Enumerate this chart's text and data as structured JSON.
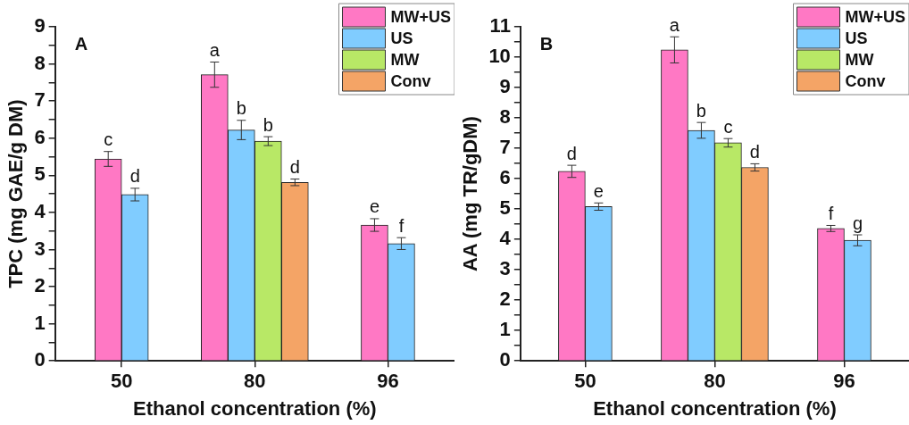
{
  "chart_data": [
    {
      "type": "bar",
      "title": "A",
      "xlabel": "Ethanol concentration (%)",
      "ylabel": "TPC (mg GAE/g DM)",
      "categories": [
        "50",
        "80",
        "96"
      ],
      "series": [
        {
          "name": "MW+US",
          "color": "#ff78c4",
          "values": [
            5.44,
            7.71,
            3.66
          ],
          "errors": [
            0.2,
            0.34,
            0.17
          ]
        },
        {
          "name": "US",
          "color": "#80ccff",
          "values": [
            4.48,
            6.22,
            3.16
          ],
          "errors": [
            0.17,
            0.26,
            0.16
          ]
        },
        {
          "name": "MW",
          "color": "#b8e866",
          "values": [
            null,
            5.92,
            null
          ],
          "errors": [
            null,
            0.12,
            null
          ]
        },
        {
          "name": "Conv",
          "color": "#f4a466",
          "values": [
            null,
            4.81,
            null
          ],
          "errors": [
            null,
            0.09,
            null
          ]
        }
      ],
      "ylim": [
        0,
        9
      ],
      "yticks": [
        0,
        {
          "value": 0.5,
          "label": null
        },
        1,
        {
          "value": 1.5,
          "label": null
        },
        2,
        {
          "value": 2.5,
          "label": null
        },
        3,
        {
          "value": 3.5,
          "label": null
        },
        4,
        {
          "value": 4.5,
          "label": null
        },
        5,
        {
          "value": 5.5,
          "label": null
        },
        6,
        {
          "value": 6.5,
          "label": null
        },
        7,
        {
          "value": 7.5,
          "label": null
        },
        8,
        {
          "value": 8.5,
          "label": null
        },
        9
      ],
      "annotations": [
        "c",
        "d",
        "a",
        "b",
        "b",
        "d",
        "e",
        "f"
      ],
      "legend": "top right",
      "grid": false
    },
    {
      "type": "bar",
      "title": "B",
      "xlabel": "Ethanol concentration (%)",
      "ylabel": "AA (mg TR/gDM)",
      "categories": [
        "50",
        "80",
        "96"
      ],
      "series": [
        {
          "name": "MW+US",
          "color": "#ff78c4",
          "values": [
            6.24,
            10.24,
            4.36
          ],
          "errors": [
            0.2,
            0.43,
            0.1
          ]
        },
        {
          "name": "US",
          "color": "#80ccff",
          "values": [
            5.08,
            7.59,
            3.97
          ],
          "errors": [
            0.12,
            0.26,
            0.18
          ]
        },
        {
          "name": "MW",
          "color": "#b8e866",
          "values": [
            null,
            7.18,
            null
          ],
          "errors": [
            null,
            0.14,
            null
          ]
        },
        {
          "name": "Conv",
          "color": "#f4a466",
          "values": [
            null,
            6.37,
            null
          ],
          "errors": [
            null,
            0.12,
            null
          ]
        }
      ],
      "ylim": [
        0,
        11
      ],
      "yticks": [
        0,
        {
          "value": 0.5,
          "label": null
        },
        1,
        {
          "value": 1.5,
          "label": null
        },
        2,
        {
          "value": 2.5,
          "label": null
        },
        3,
        {
          "value": 3.5,
          "label": null
        },
        4,
        {
          "value": 4.5,
          "label": null
        },
        5,
        {
          "value": 5.5,
          "label": null
        },
        6,
        {
          "value": 6.5,
          "label": null
        },
        7,
        {
          "value": 7.5,
          "label": null
        },
        8,
        {
          "value": 8.5,
          "label": null
        },
        9,
        {
          "value": 9.5,
          "label": null
        },
        10,
        {
          "value": 10.5,
          "label": null
        },
        11
      ],
      "annotations": [
        "d",
        "e",
        "a",
        "b",
        "c",
        "d",
        "f",
        "g"
      ],
      "legend": "top right",
      "grid": false
    }
  ]
}
